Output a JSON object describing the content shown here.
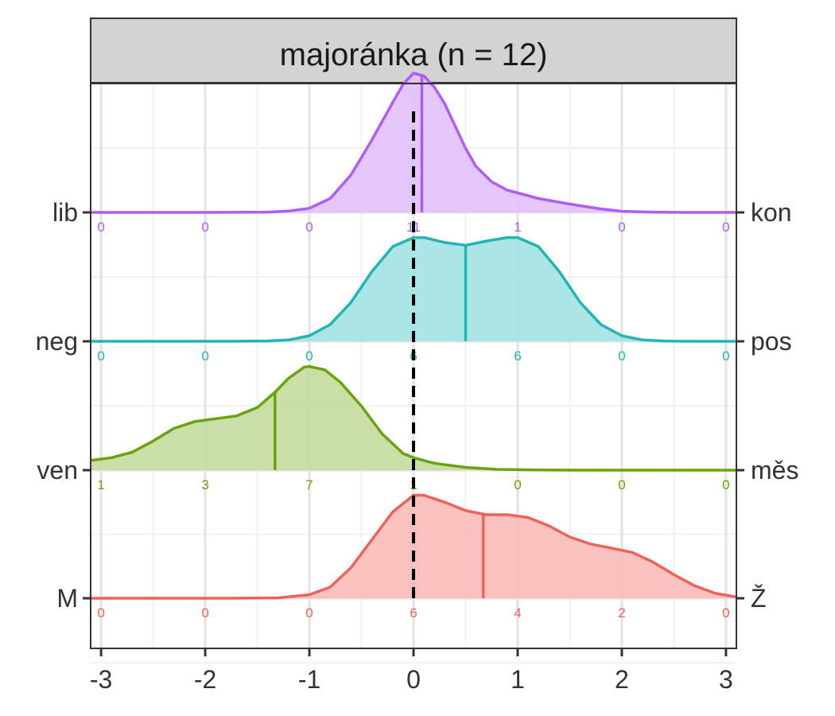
{
  "chart_data": {
    "type": "ridgeline-density",
    "title": "majoránka (n = 12)",
    "xlim": [
      -3.1,
      3.1
    ],
    "x_ticks": [
      -3,
      -2,
      -1,
      0,
      1,
      2,
      3
    ],
    "x_tick_labels": [
      "-3",
      "-2",
      "-1",
      "0",
      "1",
      "2",
      "3"
    ],
    "reference_line": {
      "x": 0,
      "style": "dashed",
      "color": "#000000"
    },
    "grid": true,
    "count_positions": [
      -3,
      -2,
      -1,
      0,
      1,
      2,
      3
    ],
    "series": [
      {
        "left_label": "lib",
        "right_label": "kon",
        "color": "#B05CF5",
        "fill": "#E2C0FB",
        "counts": [
          "0",
          "0",
          "0",
          "11",
          "1",
          "0",
          "0"
        ],
        "mean": 0.08,
        "peak": 1.0,
        "density": [
          [
            -3.1,
            0
          ],
          [
            -2,
            0
          ],
          [
            -1.4,
            0.002
          ],
          [
            -1.2,
            0.01
          ],
          [
            -1,
            0.03
          ],
          [
            -0.8,
            0.1
          ],
          [
            -0.6,
            0.27
          ],
          [
            -0.4,
            0.52
          ],
          [
            -0.2,
            0.79
          ],
          [
            -0.1,
            0.92
          ],
          [
            0,
            1.0
          ],
          [
            0.1,
            0.98
          ],
          [
            0.2,
            0.9
          ],
          [
            0.3,
            0.78
          ],
          [
            0.4,
            0.62
          ],
          [
            0.5,
            0.46
          ],
          [
            0.6,
            0.33
          ],
          [
            0.75,
            0.22
          ],
          [
            0.9,
            0.16
          ],
          [
            1,
            0.14
          ],
          [
            1.2,
            0.1
          ],
          [
            1.5,
            0.06
          ],
          [
            1.8,
            0.025
          ],
          [
            2,
            0.008
          ],
          [
            2.3,
            0.002
          ],
          [
            2.6,
            0
          ],
          [
            3.1,
            0
          ]
        ]
      },
      {
        "left_label": "neg",
        "right_label": "pos",
        "color": "#22B5B5",
        "fill": "#A3E2E2",
        "counts": [
          "0",
          "0",
          "0",
          "6",
          "6",
          "0",
          "0"
        ],
        "mean": 0.5,
        "peak": 0.75,
        "density": [
          [
            -3.1,
            0
          ],
          [
            -1.8,
            0
          ],
          [
            -1.4,
            0.002
          ],
          [
            -1.2,
            0.01
          ],
          [
            -1,
            0.04
          ],
          [
            -0.8,
            0.12
          ],
          [
            -0.6,
            0.28
          ],
          [
            -0.4,
            0.5
          ],
          [
            -0.2,
            0.68
          ],
          [
            0,
            0.745
          ],
          [
            0.1,
            0.745
          ],
          [
            0.3,
            0.71
          ],
          [
            0.5,
            0.69
          ],
          [
            0.7,
            0.72
          ],
          [
            0.9,
            0.745
          ],
          [
            1.0,
            0.745
          ],
          [
            1.2,
            0.68
          ],
          [
            1.4,
            0.5
          ],
          [
            1.6,
            0.28
          ],
          [
            1.8,
            0.12
          ],
          [
            2.0,
            0.04
          ],
          [
            2.2,
            0.01
          ],
          [
            2.4,
            0.002
          ],
          [
            2.6,
            0
          ],
          [
            3.1,
            0
          ]
        ]
      },
      {
        "left_label": "ven",
        "right_label": "měs",
        "color": "#6AA30A",
        "fill": "#C4DB9D",
        "counts": [
          "1",
          "3",
          "7",
          "1",
          "0",
          "0",
          "0"
        ],
        "mean": -1.33,
        "peak": 0.75,
        "density": [
          [
            -3.1,
            0.07
          ],
          [
            -2.9,
            0.09
          ],
          [
            -2.7,
            0.13
          ],
          [
            -2.5,
            0.21
          ],
          [
            -2.3,
            0.3
          ],
          [
            -2.1,
            0.35
          ],
          [
            -1.9,
            0.37
          ],
          [
            -1.7,
            0.39
          ],
          [
            -1.5,
            0.45
          ],
          [
            -1.33,
            0.56
          ],
          [
            -1.2,
            0.66
          ],
          [
            -1.05,
            0.74
          ],
          [
            -1,
            0.745
          ],
          [
            -0.85,
            0.72
          ],
          [
            -0.7,
            0.63
          ],
          [
            -0.5,
            0.46
          ],
          [
            -0.3,
            0.26
          ],
          [
            -0.1,
            0.12
          ],
          [
            0,
            0.09
          ],
          [
            0.2,
            0.05
          ],
          [
            0.5,
            0.02
          ],
          [
            0.8,
            0.006
          ],
          [
            1.2,
            0.001
          ],
          [
            1.6,
            0
          ],
          [
            3.1,
            0
          ]
        ]
      },
      {
        "left_label": "M",
        "right_label": "Ž",
        "color": "#F0615A",
        "fill": "#F8BBB8",
        "counts": [
          "0",
          "0",
          "0",
          "6",
          "4",
          "2",
          "0"
        ],
        "mean": 0.67,
        "peak": 0.74,
        "density": [
          [
            -3.1,
            0
          ],
          [
            -1.8,
            0
          ],
          [
            -1.3,
            0.003
          ],
          [
            -1,
            0.025
          ],
          [
            -0.8,
            0.08
          ],
          [
            -0.6,
            0.22
          ],
          [
            -0.4,
            0.42
          ],
          [
            -0.2,
            0.62
          ],
          [
            0,
            0.74
          ],
          [
            0.1,
            0.74
          ],
          [
            0.3,
            0.69
          ],
          [
            0.5,
            0.63
          ],
          [
            0.7,
            0.6
          ],
          [
            0.9,
            0.6
          ],
          [
            1.1,
            0.58
          ],
          [
            1.3,
            0.52
          ],
          [
            1.5,
            0.44
          ],
          [
            1.7,
            0.39
          ],
          [
            1.9,
            0.36
          ],
          [
            2.1,
            0.33
          ],
          [
            2.3,
            0.26
          ],
          [
            2.5,
            0.17
          ],
          [
            2.7,
            0.09
          ],
          [
            2.9,
            0.035
          ],
          [
            3.1,
            0.01
          ]
        ]
      }
    ]
  }
}
